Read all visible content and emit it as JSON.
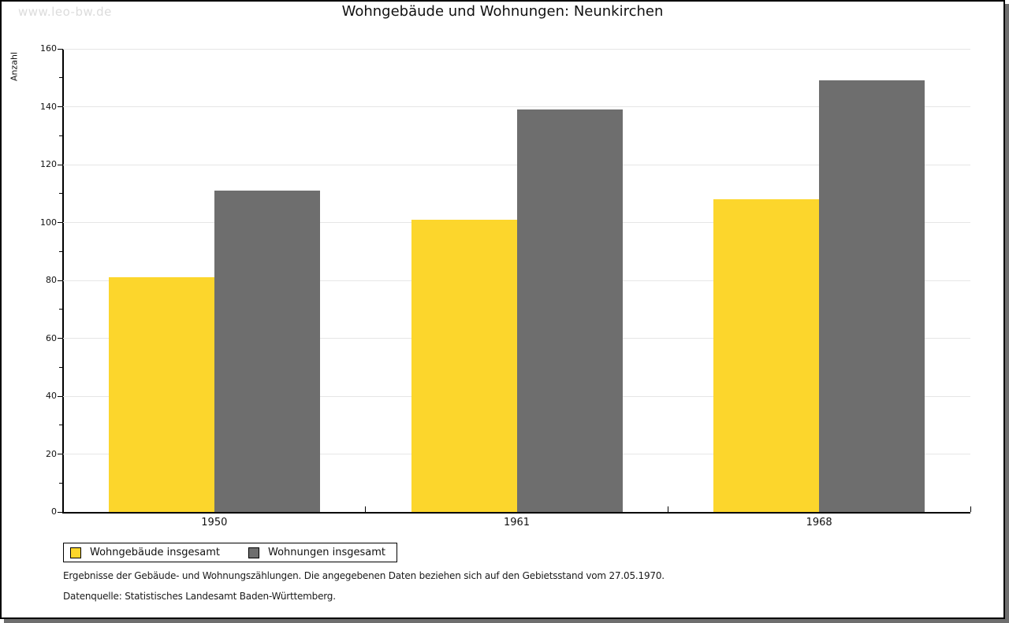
{
  "watermark": "www.leo-bw.de",
  "chart_data": {
    "type": "bar",
    "title": "Wohngebäude und Wohnungen: Neunkirchen",
    "ylabel": "Anzahl",
    "xlabel": "",
    "categories": [
      "1950",
      "1961",
      "1968"
    ],
    "series": [
      {
        "name": "Wohngebäude insgesamt",
        "color": "#FCD62C",
        "values": [
          81,
          101,
          108
        ]
      },
      {
        "name": "Wohnungen insgesamt",
        "color": "#6E6E6E",
        "values": [
          111,
          139,
          149
        ]
      }
    ],
    "ylim": [
      0,
      160
    ],
    "ytick_step": 20,
    "yminor_step": 10,
    "grid": true,
    "legend_position": "bottom-left"
  },
  "footnotes": [
    "Ergebnisse der Gebäude- und Wohnungszählungen. Die angegebenen Daten beziehen sich auf den Gebietsstand vom 27.05.1970.",
    "Datenquelle: Statistisches Landesamt Baden-Württemberg."
  ]
}
